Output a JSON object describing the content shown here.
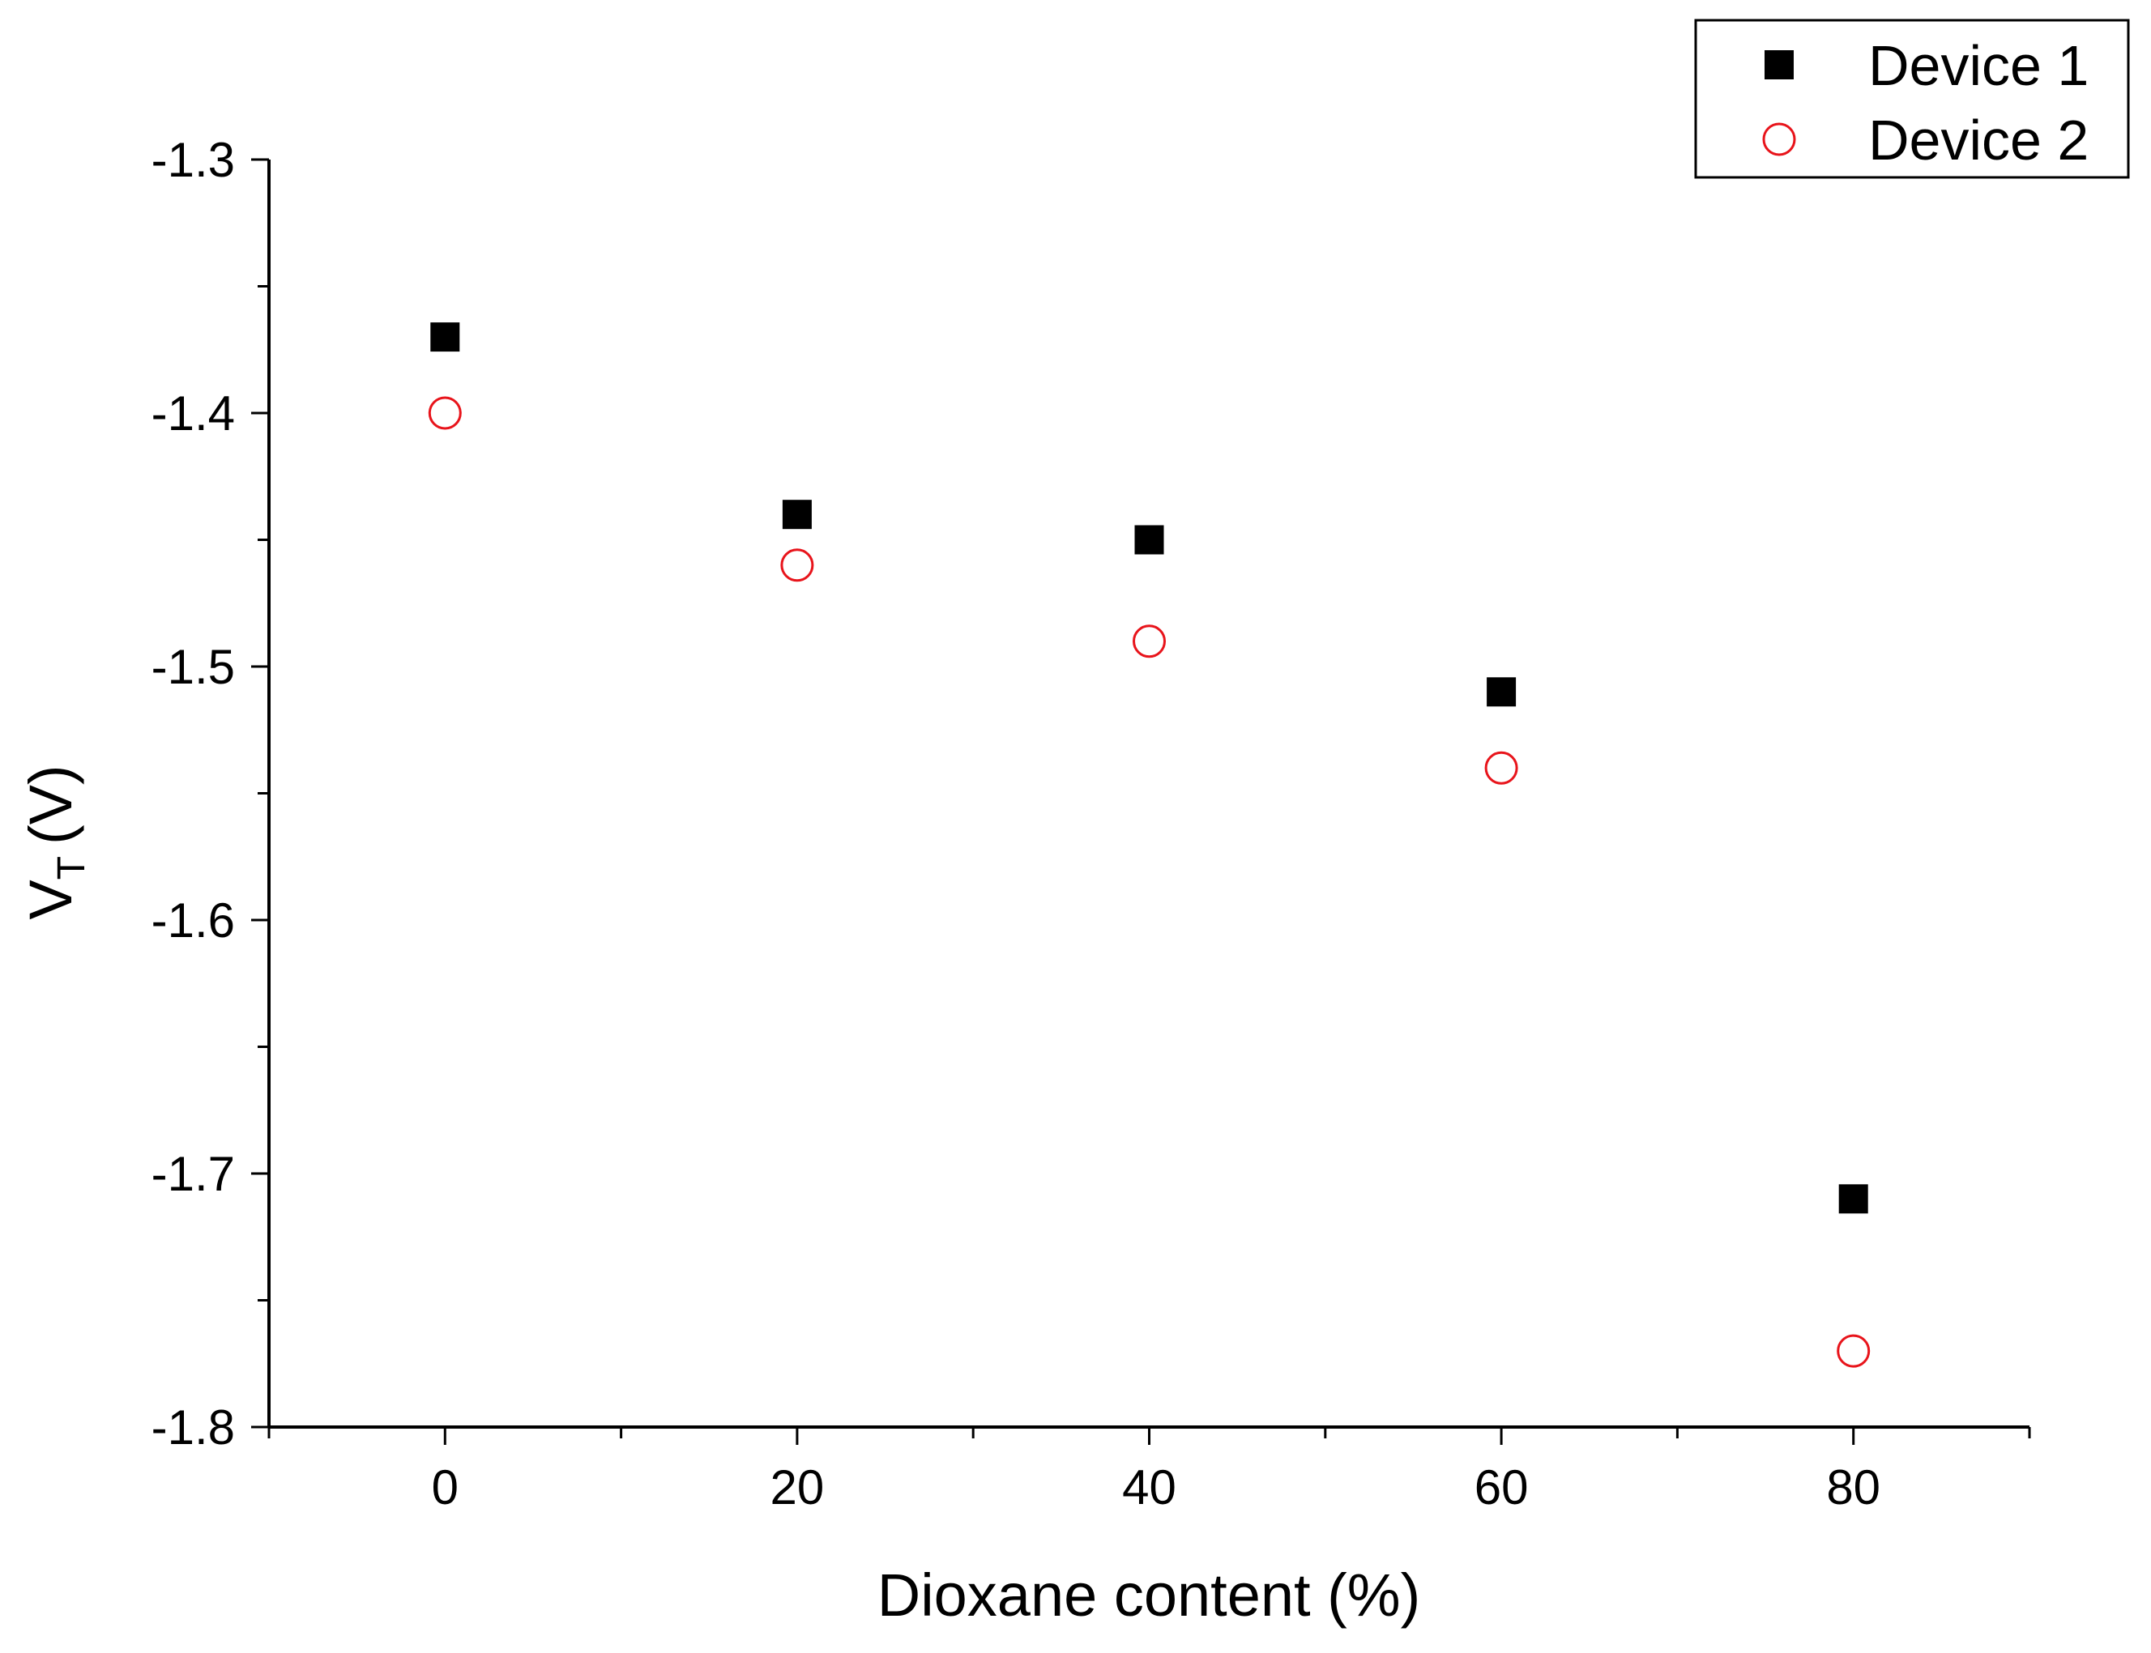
{
  "chart_data": {
    "type": "scatter",
    "title": "",
    "xlabel": "Dioxane content (%)",
    "ylabel_main": "V",
    "ylabel_sub": "T",
    "ylabel_unit": "(V)",
    "xlim": [
      -10,
      90
    ],
    "ylim": [
      -1.8,
      -1.3
    ],
    "xticks": [
      0,
      20,
      40,
      60,
      80
    ],
    "xtick_labels": [
      "0",
      "20",
      "40",
      "60",
      "80"
    ],
    "yticks": [
      -1.3,
      -1.4,
      -1.5,
      -1.6,
      -1.7,
      -1.8
    ],
    "ytick_labels": [
      "-1.3",
      "-1.4",
      "-1.5",
      "-1.6",
      "-1.7",
      "-1.8"
    ],
    "grid": false,
    "legend_position": "top-right",
    "series": [
      {
        "name": "Device 1",
        "marker": "filled-square",
        "color": "#000000",
        "x": [
          0,
          20,
          40,
          60,
          80
        ],
        "y": [
          -1.37,
          -1.44,
          -1.45,
          -1.51,
          -1.71
        ]
      },
      {
        "name": "Device 2",
        "marker": "open-circle",
        "color": "#e8141b",
        "x": [
          0,
          20,
          40,
          60,
          80
        ],
        "y": [
          -1.4,
          -1.46,
          -1.49,
          -1.54,
          -1.77
        ]
      }
    ]
  }
}
